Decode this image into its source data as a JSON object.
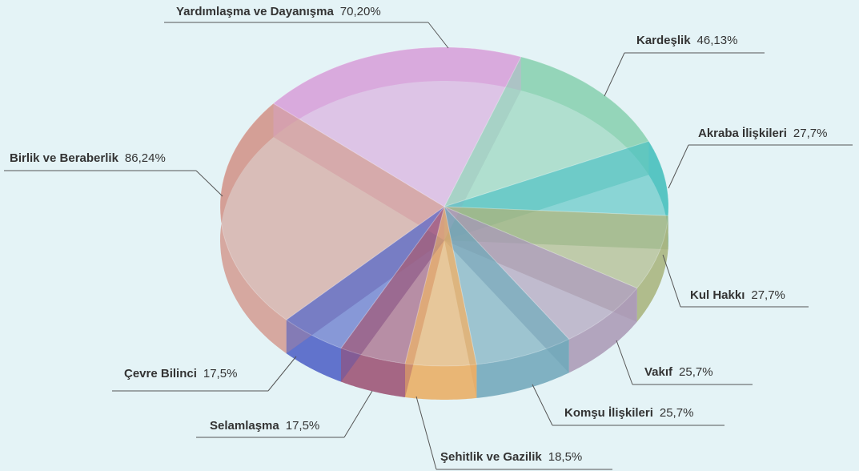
{
  "chart_data": {
    "type": "pie3d",
    "categories": [
      "Kardeşlik",
      "Akraba İlişkileri",
      "Kul Hakkı",
      "Vakıf",
      "Komşu İlişkileri",
      "Şehitlik ve Gazilik",
      "Selamlaşma",
      "Çevre Bilinci",
      "Birlik ve Beraberlik",
      "Yardımlaşma ve Dayanışma"
    ],
    "values": [
      46.13,
      27.7,
      27.7,
      25.7,
      25.7,
      18.5,
      17.5,
      17.5,
      86.24,
      70.2
    ],
    "value_labels": [
      "46,13%",
      "27,7%",
      "27,7%",
      "25,7%",
      "25,7%",
      "18,5%",
      "17,5%",
      "17,5%",
      "86,24%",
      "70,20%"
    ],
    "colors": [
      "#8fd3b6",
      "#4fc2c0",
      "#a7b279",
      "#a996b4",
      "#6ea5b8",
      "#eaaa5e",
      "#9a4c70",
      "#4a5cc4",
      "#d39a90",
      "#d9a6dc"
    ]
  }
}
